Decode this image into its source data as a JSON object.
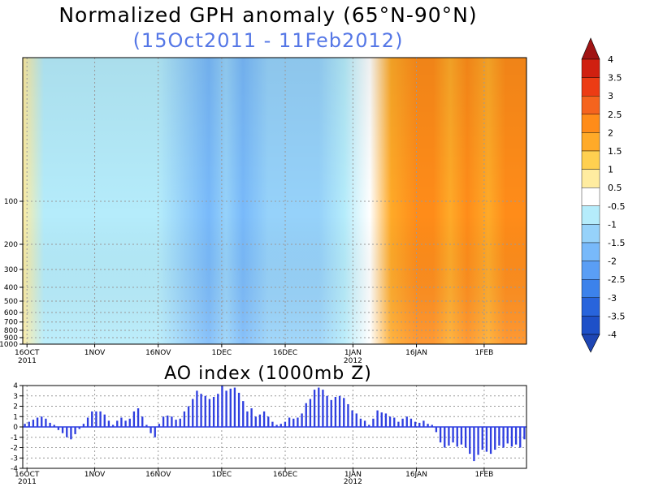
{
  "chart_data": [
    {
      "type": "heatmap",
      "title": "Normalized GPH anomaly (65°N-90°N)",
      "subtitle": "(15Oct2011 - 11Feb2012)",
      "subtitle_color": "#5577e6",
      "xlabel": "",
      "ylabel": "",
      "x_tick_labels": [
        "16OCT",
        "1NOV",
        "16NOV",
        "1DEC",
        "16DEC",
        "1JAN",
        "16JAN",
        "1FEB"
      ],
      "x_tick_year_labels": [
        "2011",
        "2012"
      ],
      "y_tick_labels": [
        "100",
        "200",
        "300",
        "400",
        "500",
        "600",
        "700",
        "800",
        "900",
        "1000"
      ],
      "y_tick_values": [
        100,
        200,
        300,
        400,
        500,
        600,
        700,
        800,
        900,
        1000
      ],
      "colorbar_levels": [
        "4",
        "3.5",
        "3",
        "2.5",
        "2",
        "1.5",
        "1",
        "0.5",
        "-0.5",
        "-1",
        "-1.5",
        "-2",
        "-2.5",
        "-3",
        "-3.5",
        "-4"
      ],
      "colorbar_colors": [
        "#a01414",
        "#d02010",
        "#ec3c14",
        "#f5641e",
        "#ff8c19",
        "#ffaa28",
        "#ffd050",
        "#ffeca0",
        "#ffffff",
        "#b5ecfb",
        "#96d2fa",
        "#78b9fa",
        "#5a9ef5",
        "#3c82eb",
        "#2864dc",
        "#1e50c8",
        "#1e46b4"
      ],
      "time_profile": [
        {
          "date": "15Oct",
          "value": 0.7
        },
        {
          "date": "20Oct",
          "value": -0.6
        },
        {
          "date": "28Oct",
          "value": -0.8
        },
        {
          "date": "3Nov",
          "value": -0.8
        },
        {
          "date": "10Nov",
          "value": -0.7
        },
        {
          "date": "16Nov",
          "value": -0.9
        },
        {
          "date": "22Nov",
          "value": -1.5
        },
        {
          "date": "28Nov",
          "value": -1.9
        },
        {
          "date": "2Dec",
          "value": -1.4
        },
        {
          "date": "6Dec",
          "value": -1.8
        },
        {
          "date": "12Dec",
          "value": -1.3
        },
        {
          "date": "18Dec",
          "value": -1.1
        },
        {
          "date": "24Dec",
          "value": -1.4
        },
        {
          "date": "30Dec",
          "value": -0.8
        },
        {
          "date": "5Jan",
          "value": 0.2
        },
        {
          "date": "10Jan",
          "value": 1.6
        },
        {
          "date": "16Jan",
          "value": 2.2
        },
        {
          "date": "20Jan",
          "value": 2.3
        },
        {
          "date": "24Jan",
          "value": 1.5
        },
        {
          "date": "28Jan",
          "value": 2.0
        },
        {
          "date": "2Feb",
          "value": 1.7
        },
        {
          "date": "6Feb",
          "value": 2.1
        },
        {
          "date": "11Feb",
          "value": 2.4
        }
      ]
    },
    {
      "type": "bar",
      "title": "AO index (1000mb Z)",
      "xlabel": "",
      "ylabel": "",
      "ylim": [
        -4,
        4
      ],
      "y_tick_labels": [
        "4",
        "3",
        "2",
        "1",
        "0",
        "-1",
        "-2",
        "-3",
        "-4"
      ],
      "x_tick_labels": [
        "16OCT",
        "1NOV",
        "16NOV",
        "1DEC",
        "16DEC",
        "1JAN",
        "16JAN",
        "1FEB"
      ],
      "x_tick_year_labels": [
        "2011",
        "2012"
      ],
      "bar_color": "#2f3fe0",
      "dates": [
        "15Oct",
        "16Oct",
        "17Oct",
        "18Oct",
        "19Oct",
        "20Oct",
        "21Oct",
        "22Oct",
        "23Oct",
        "24Oct",
        "25Oct",
        "26Oct",
        "27Oct",
        "28Oct",
        "29Oct",
        "30Oct",
        "31Oct",
        "1Nov",
        "2Nov",
        "3Nov",
        "4Nov",
        "5Nov",
        "6Nov",
        "7Nov",
        "8Nov",
        "9Nov",
        "10Nov",
        "11Nov",
        "12Nov",
        "13Nov",
        "14Nov",
        "15Nov",
        "16Nov",
        "17Nov",
        "18Nov",
        "19Nov",
        "20Nov",
        "21Nov",
        "22Nov",
        "23Nov",
        "24Nov",
        "25Nov",
        "26Nov",
        "27Nov",
        "28Nov",
        "29Nov",
        "30Nov",
        "1Dec",
        "2Dec",
        "3Dec",
        "4Dec",
        "5Dec",
        "6Dec",
        "7Dec",
        "8Dec",
        "9Dec",
        "10Dec",
        "11Dec",
        "12Dec",
        "13Dec",
        "14Dec",
        "15Dec",
        "16Dec",
        "17Dec",
        "18Dec",
        "19Dec",
        "20Dec",
        "21Dec",
        "22Dec",
        "23Dec",
        "24Dec",
        "25Dec",
        "26Dec",
        "27Dec",
        "28Dec",
        "29Dec",
        "30Dec",
        "31Dec",
        "1Jan",
        "2Jan",
        "3Jan",
        "4Jan",
        "5Jan",
        "6Jan",
        "7Jan",
        "8Jan",
        "9Jan",
        "10Jan",
        "11Jan",
        "12Jan",
        "13Jan",
        "14Jan",
        "15Jan",
        "16Jan",
        "17Jan",
        "18Jan",
        "19Jan",
        "20Jan",
        "21Jan",
        "22Jan",
        "23Jan",
        "24Jan",
        "25Jan",
        "26Jan",
        "27Jan",
        "28Jan",
        "29Jan",
        "30Jan",
        "31Jan",
        "1Feb",
        "2Feb",
        "3Feb",
        "4Feb",
        "5Feb",
        "6Feb",
        "7Feb",
        "8Feb",
        "9Feb",
        "10Feb",
        "11Feb"
      ],
      "values": [
        0.3,
        0.5,
        0.7,
        0.9,
        1.0,
        0.8,
        0.4,
        0.2,
        -0.3,
        -0.6,
        -1.0,
        -1.2,
        -0.7,
        -0.2,
        0.3,
        0.9,
        1.5,
        1.5,
        1.5,
        1.2,
        0.6,
        0.2,
        0.6,
        0.9,
        0.6,
        0.8,
        1.5,
        1.8,
        1.0,
        0.2,
        -0.6,
        -1.0,
        0.3,
        1.0,
        1.1,
        1.0,
        0.7,
        0.8,
        1.5,
        2.0,
        2.7,
        3.5,
        3.2,
        3.0,
        2.7,
        2.9,
        3.2,
        4.0,
        3.5,
        3.7,
        3.8,
        3.3,
        2.5,
        1.5,
        1.8,
        1.0,
        1.2,
        1.5,
        1.0,
        0.5,
        0.2,
        0.3,
        0.5,
        0.9,
        0.8,
        0.9,
        1.3,
        2.3,
        2.7,
        3.6,
        3.8,
        3.6,
        3.0,
        2.6,
        2.9,
        3.0,
        2.8,
        2.2,
        1.6,
        1.3,
        0.8,
        0.6,
        0.2,
        0.8,
        1.6,
        1.4,
        1.3,
        1.0,
        0.9,
        0.5,
        0.8,
        1.0,
        0.8,
        0.5,
        0.4,
        0.6,
        0.3,
        0.2,
        -0.5,
        -1.5,
        -2.0,
        -1.8,
        -1.5,
        -1.9,
        -1.7,
        -2.0,
        -2.6,
        -3.3,
        -2.7,
        -2.2,
        -2.4,
        -2.6,
        -2.2,
        -1.8,
        -2.0,
        -1.6,
        -1.9,
        -1.7,
        -2.0,
        -1.2
      ]
    }
  ]
}
